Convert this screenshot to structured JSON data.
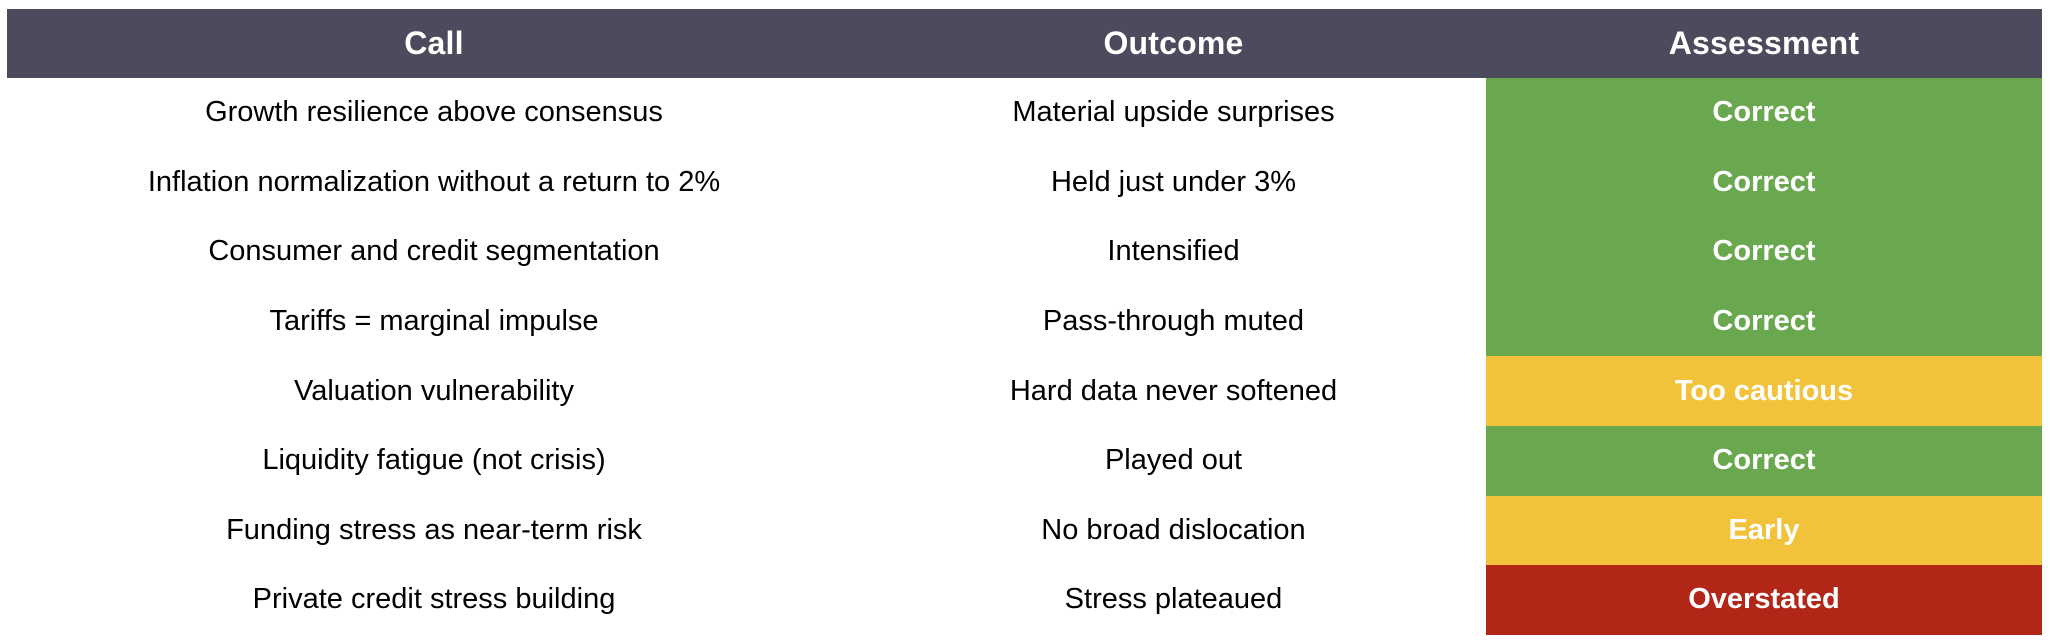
{
  "page": {
    "background": "#FFFFFF"
  },
  "table": {
    "header": {
      "background": "#4C4B5D",
      "text_color": "#FFFFFF",
      "columns": [
        "Call",
        "Outcome",
        "Assessment"
      ]
    },
    "status_colors": {
      "correct": "#69A84F",
      "too_cautious": "#F2C33A",
      "early": "#F2C33A",
      "overstated": "#B22618"
    },
    "rows": [
      {
        "call": "Growth resilience above consensus",
        "outcome": "Material upside surprises",
        "assessment": "Correct",
        "color": "#69A84F"
      },
      {
        "call": "Inflation normalization without a return to 2%",
        "outcome": "Held just under 3%",
        "assessment": "Correct",
        "color": "#69A84F"
      },
      {
        "call": "Consumer and credit segmentation",
        "outcome": "Intensified",
        "assessment": "Correct",
        "color": "#69A84F"
      },
      {
        "call": "Tariffs = marginal impulse",
        "outcome": "Pass-through muted",
        "assessment": "Correct",
        "color": "#69A84F"
      },
      {
        "call": "Valuation vulnerability",
        "outcome": "Hard data never softened",
        "assessment": "Too cautious",
        "color": "#F2C33A"
      },
      {
        "call": "Liquidity fatigue (not crisis)",
        "outcome": "Played out",
        "assessment": "Correct",
        "color": "#69A84F"
      },
      {
        "call": "Funding stress as near-term risk",
        "outcome": "No broad dislocation",
        "assessment": "Early",
        "color": "#F2C33A"
      },
      {
        "call": "Private credit stress building",
        "outcome": "Stress plateaued",
        "assessment": "Overstated",
        "color": "#B22618"
      }
    ]
  }
}
